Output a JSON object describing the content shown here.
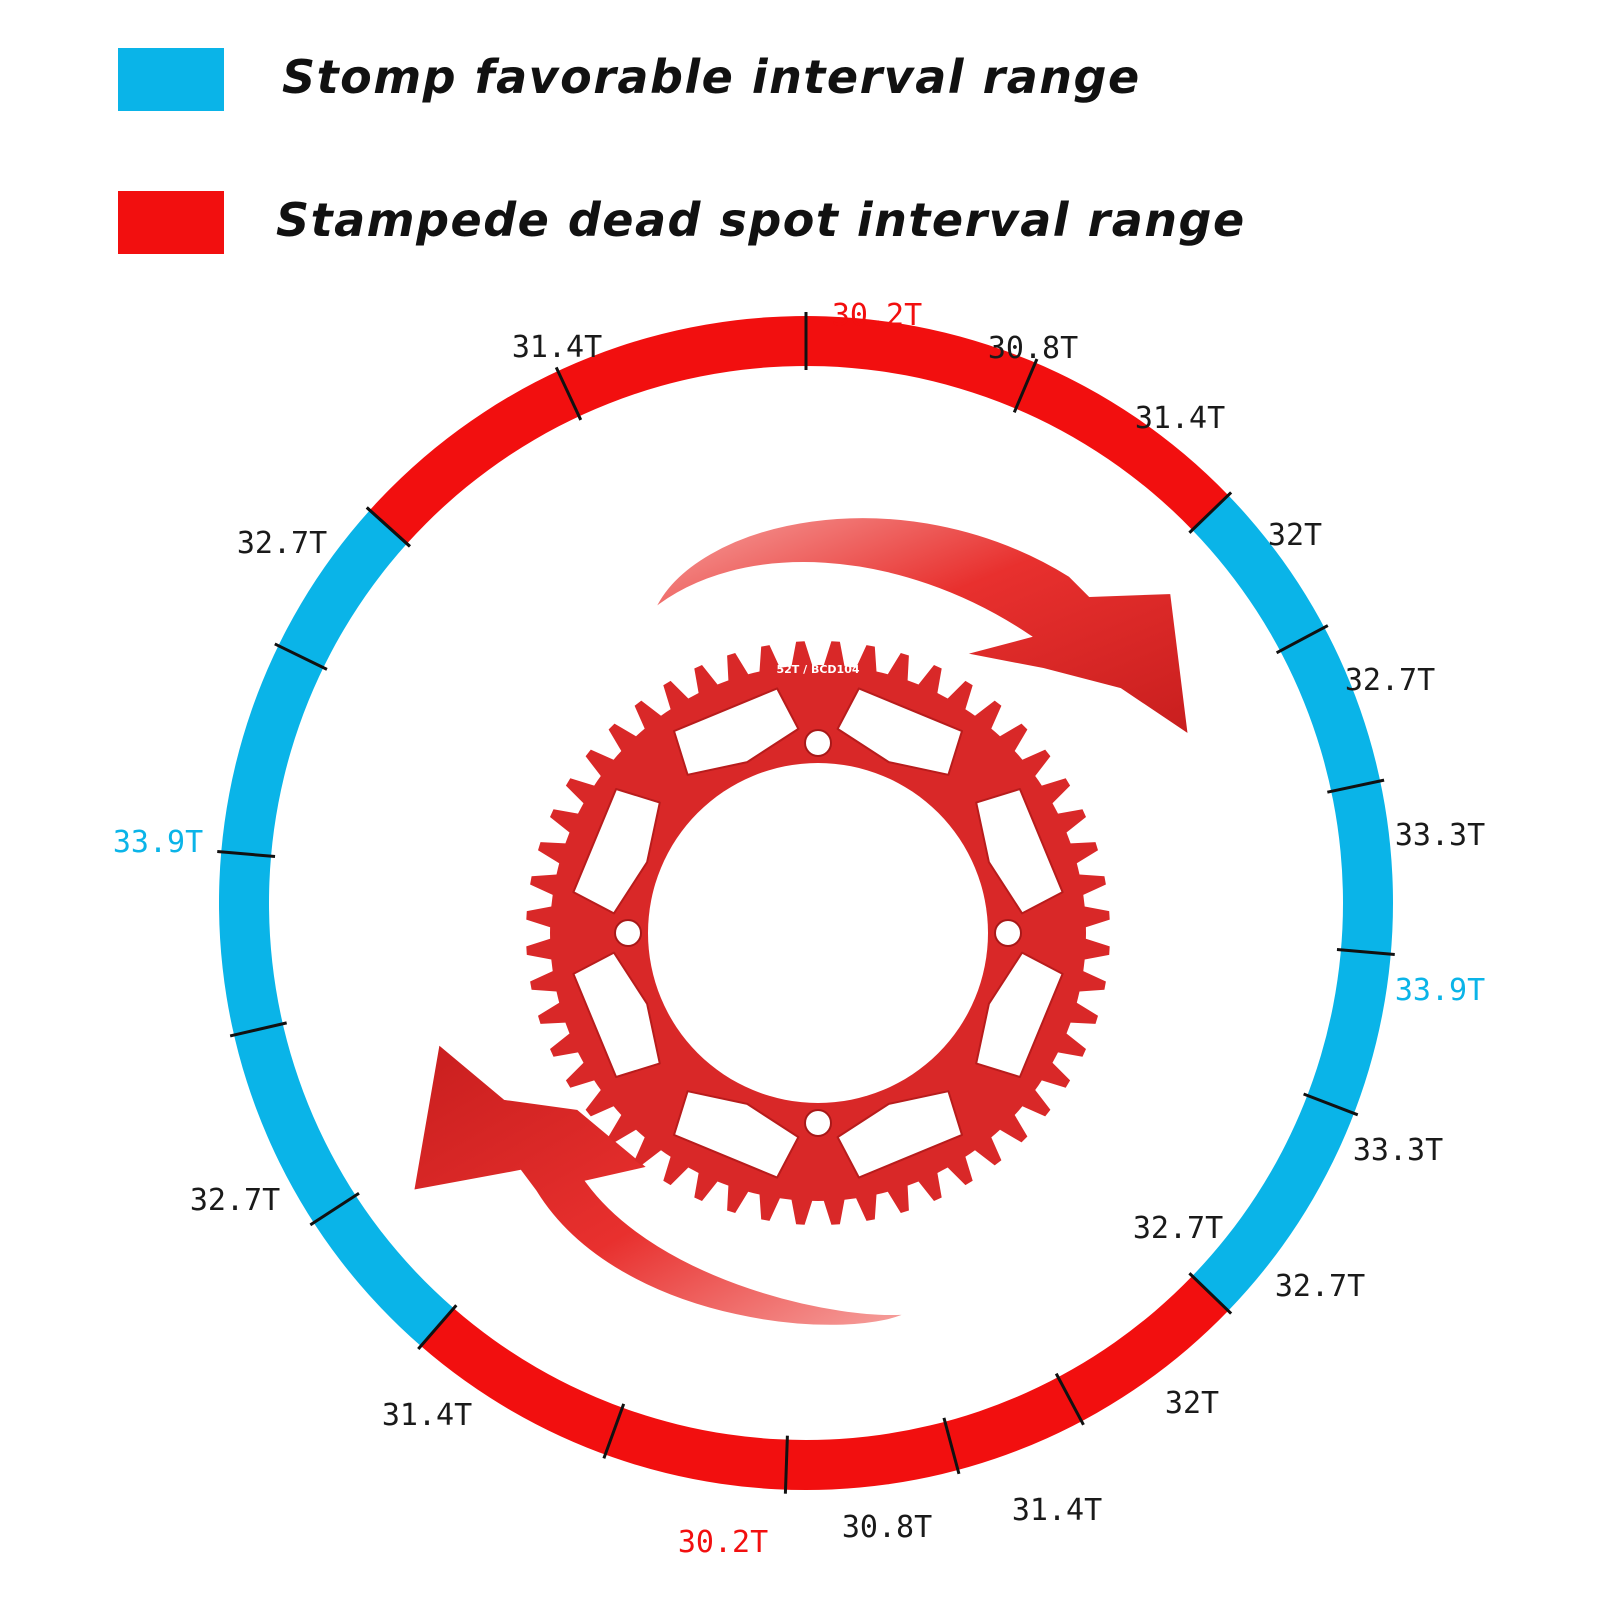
{
  "legend": {
    "favorable": {
      "label": "Stomp favorable interval range",
      "color": "#0ab4e8"
    },
    "dead_spot": {
      "label": "Stampede dead spot interval range",
      "color": "#f20f0f"
    }
  },
  "colors": {
    "ring_blue": "#0ab4e8",
    "ring_red": "#f20f0f",
    "chainring": "#d92828",
    "arrow": "#e8302e"
  },
  "chainring": {
    "engraving": "52T / BCD104",
    "teeth": 52,
    "bolt_holes": 4
  },
  "ring_labels": [
    {
      "text": "30.2T",
      "color": "red"
    },
    {
      "text": "30.8T",
      "color": "black"
    },
    {
      "text": "31.4T",
      "color": "black"
    },
    {
      "text": "32T",
      "color": "black"
    },
    {
      "text": "32.7T",
      "color": "black"
    },
    {
      "text": "33.3T",
      "color": "black"
    },
    {
      "text": "33.9T",
      "color": "blue"
    },
    {
      "text": "33.3T",
      "color": "black"
    },
    {
      "text": "32.7T",
      "color": "black"
    },
    {
      "text": "32.7T",
      "color": "black"
    },
    {
      "text": "32T",
      "color": "black"
    },
    {
      "text": "31.4T",
      "color": "black"
    },
    {
      "text": "30.8T",
      "color": "black"
    },
    {
      "text": "30.2T",
      "color": "red"
    },
    {
      "text": "31.4T",
      "color": "black"
    },
    {
      "text": "32.7T",
      "color": "black"
    },
    {
      "text": "33.9T",
      "color": "blue"
    },
    {
      "text": "32.7T",
      "color": "black"
    },
    {
      "text": "31.4T",
      "color": "black"
    }
  ]
}
